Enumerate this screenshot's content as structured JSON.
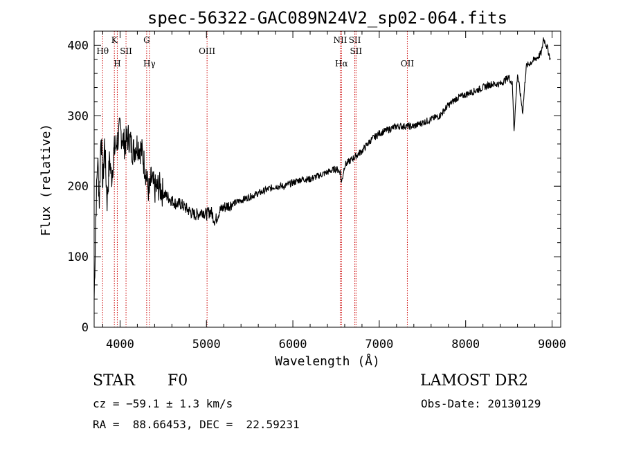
{
  "chart_data": {
    "type": "line",
    "title": "spec-56322-GAC089N24V2_sp02-064.fits",
    "xlabel": "Wavelength (Å)",
    "ylabel": "Flux (relative)",
    "xlim": [
      3700,
      9100
    ],
    "ylim": [
      0,
      420
    ],
    "xticks": [
      4000,
      5000,
      6000,
      7000,
      8000,
      9000
    ],
    "yticks": [
      0,
      100,
      200,
      300,
      400
    ],
    "grid": false,
    "line_color": "#000000",
    "marker_color": "#cc0000",
    "series": [
      {
        "x": [
          3700,
          3720,
          3740,
          3760,
          3780,
          3800,
          3820,
          3850,
          3880,
          3900,
          3930,
          3960,
          4000,
          4050,
          4100,
          4150,
          4200,
          4250,
          4300,
          4320,
          4340,
          4360,
          4400,
          4450,
          4500,
          4550,
          4600,
          4650,
          4700,
          4750,
          4800,
          4850,
          4900,
          4950,
          5000,
          5050,
          5100,
          5150,
          5200,
          5300,
          5400,
          5500,
          5600,
          5700,
          5800,
          5900,
          6000,
          6100,
          6200,
          6300,
          6400,
          6500,
          6550,
          6563,
          6600,
          6700,
          6800,
          6900,
          7000,
          7100,
          7200,
          7300,
          7400,
          7500,
          7600,
          7700,
          7800,
          7900,
          8000,
          8100,
          8200,
          8300,
          8400,
          8500,
          8540,
          8560,
          8600,
          8660,
          8700,
          8800,
          8850,
          8880,
          8900,
          8950,
          8980
        ],
        "y": [
          40,
          160,
          240,
          180,
          280,
          200,
          260,
          180,
          240,
          210,
          250,
          260,
          280,
          260,
          270,
          250,
          260,
          250,
          220,
          200,
          190,
          210,
          195,
          200,
          190,
          185,
          180,
          175,
          175,
          170,
          165,
          160,
          160,
          165,
          160,
          165,
          150,
          165,
          170,
          175,
          180,
          185,
          190,
          195,
          200,
          200,
          205,
          210,
          210,
          215,
          220,
          225,
          220,
          205,
          230,
          240,
          250,
          265,
          275,
          280,
          285,
          285,
          285,
          290,
          295,
          300,
          315,
          325,
          330,
          335,
          340,
          345,
          345,
          355,
          345,
          280,
          360,
          305,
          370,
          380,
          385,
          390,
          410,
          395,
          380
        ]
      }
    ],
    "lines": [
      {
        "label": "Hθ",
        "wavelength": 3798,
        "row": 2
      },
      {
        "label": "K",
        "wavelength": 3934,
        "row": 1
      },
      {
        "label": "H",
        "wavelength": 3968,
        "row": 3
      },
      {
        "label": "SII",
        "wavelength": 4069,
        "row": 2
      },
      {
        "label": "G",
        "wavelength": 4308,
        "row": 1
      },
      {
        "label": "Hγ",
        "wavelength": 4340,
        "row": 3
      },
      {
        "label": "OIII",
        "wavelength": 5007,
        "row": 2
      },
      {
        "label": "NII",
        "wavelength": 6548,
        "row": 1
      },
      {
        "label": "Hα",
        "wavelength": 6563,
        "row": 3
      },
      {
        "label": "SII",
        "wavelength": 6717,
        "row": 1
      },
      {
        "label": "SII",
        "wavelength": 6731,
        "row": 2
      },
      {
        "label": "OII",
        "wavelength": 7325,
        "row": 3
      }
    ]
  },
  "info": {
    "class": "STAR",
    "subclass": "F0",
    "survey": "LAMOST DR2",
    "cz": "cz = −59.1 ± 1.3 km/s",
    "obs_date": "Obs-Date: 20130129",
    "radec": "RA =  88.66453, DEC =  22.59231"
  }
}
